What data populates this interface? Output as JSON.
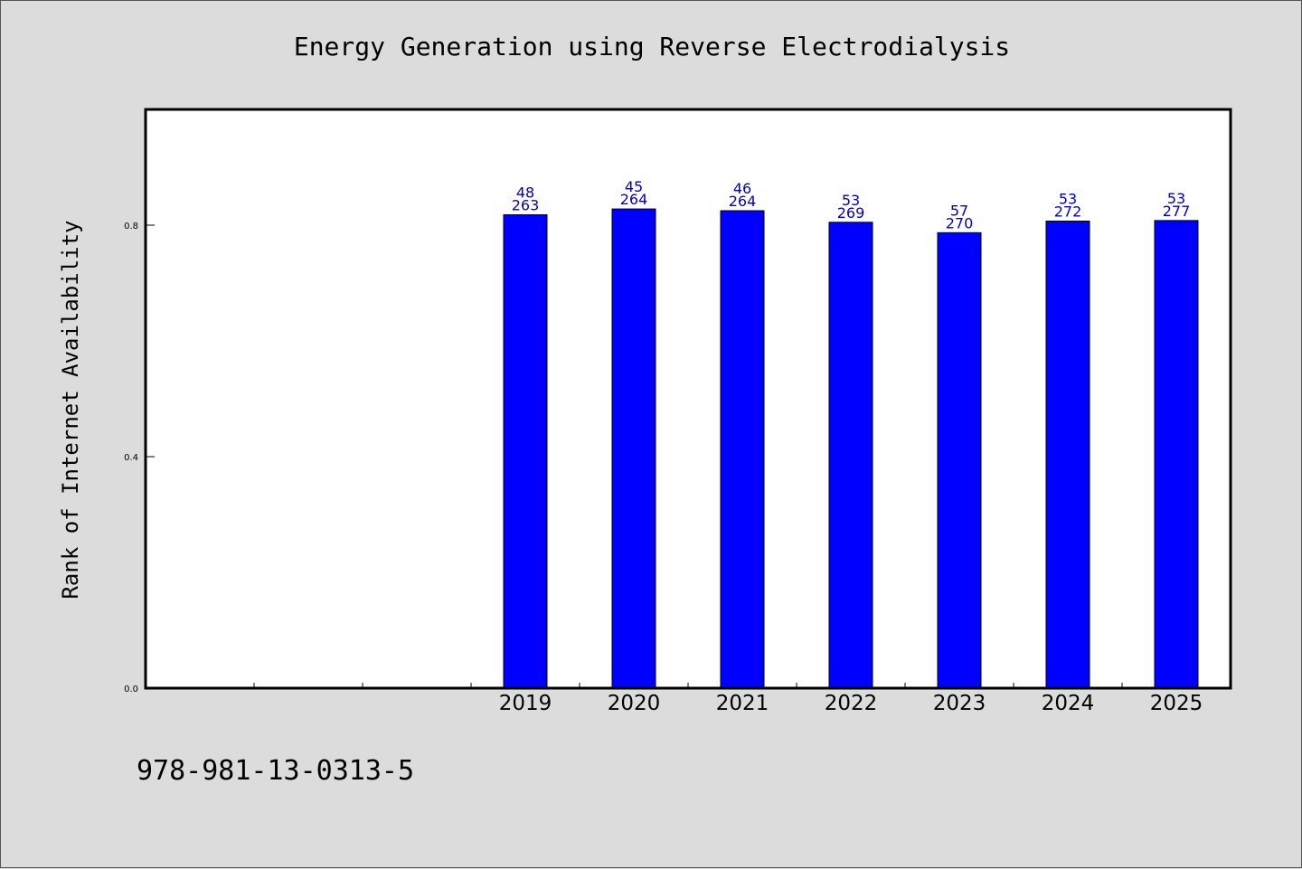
{
  "chart_data": {
    "type": "bar",
    "title": "Energy Generation using Reverse Electrodialysis",
    "xlabel": "",
    "ylabel": "Rank of Internet Availability",
    "categories": [
      "",
      "",
      "",
      "2019",
      "2020",
      "2021",
      "2022",
      "2023",
      "2024",
      "2025"
    ],
    "values": [
      null,
      null,
      null,
      0.818,
      0.828,
      0.825,
      0.805,
      0.787,
      0.807,
      0.808
    ],
    "label_top": [
      "",
      "",
      "",
      "48",
      "45",
      "46",
      "53",
      "57",
      "53",
      "53"
    ],
    "label_bottom": [
      "",
      "",
      "",
      "263",
      "264",
      "264",
      "269",
      "270",
      "272",
      "277"
    ],
    "ylim": [
      0,
      1.0
    ],
    "yticks": [
      "0.0",
      "0.4",
      "0.8"
    ],
    "ytick_values": [
      0,
      0.4,
      0.8
    ],
    "grid": false,
    "legend": "none",
    "bar_color": "#0000ff",
    "label_color": "#0000cc"
  },
  "footer": {
    "identifier": "978-981-13-0313-5"
  },
  "colors": {
    "background": "#dcdcdc",
    "plot_background": "#ffffff"
  }
}
